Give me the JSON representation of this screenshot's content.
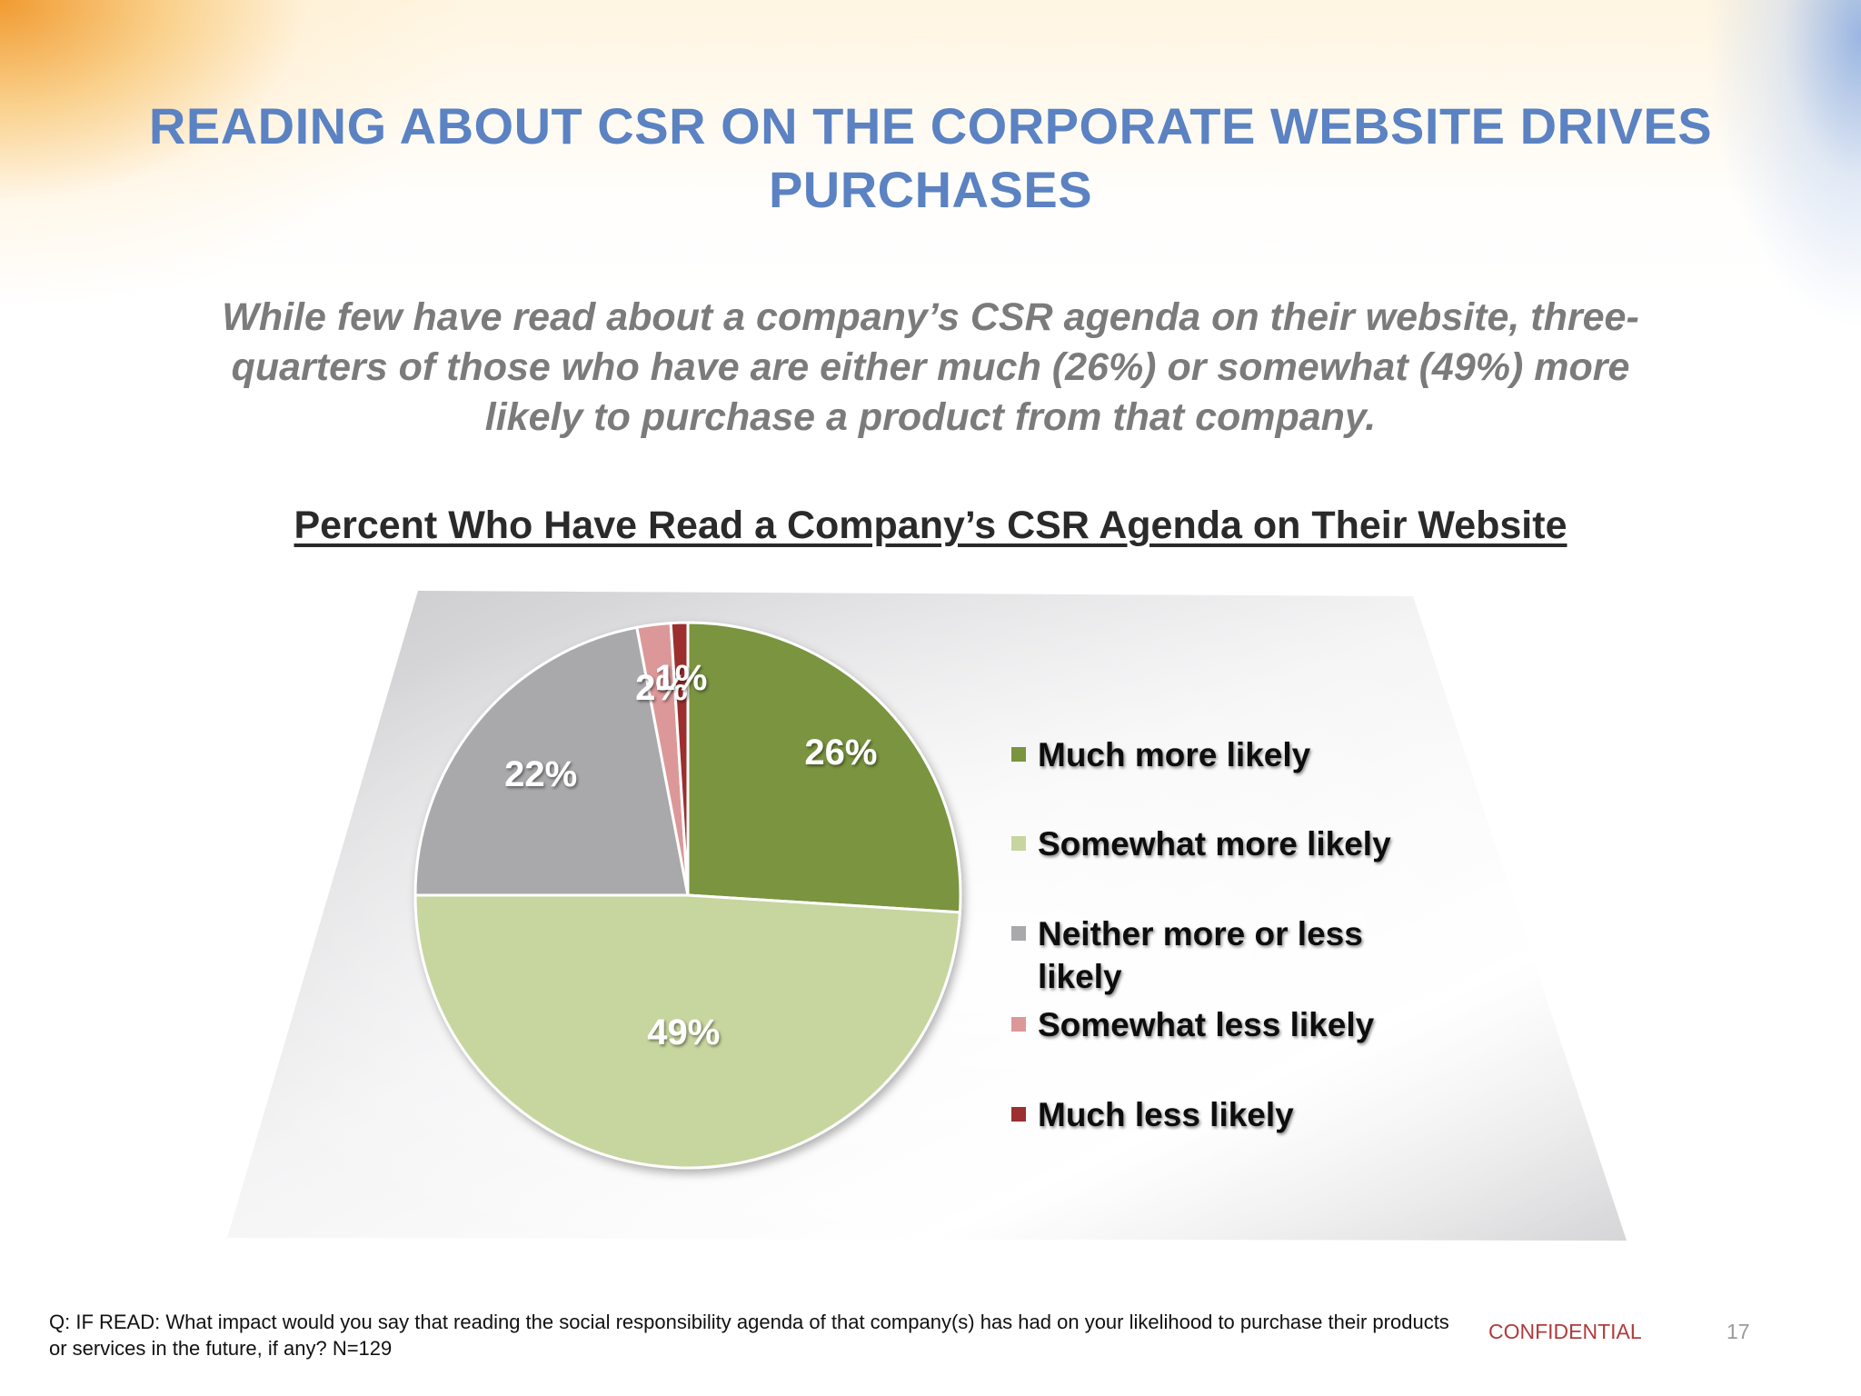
{
  "slide": {
    "title_line1": "READING ABOUT CSR ON THE CORPORATE WEBSITE DRIVES",
    "title_line2": "PURCHASES",
    "subtitle_line1": "While few have read about a company’s CSR agenda on their website, three-",
    "subtitle_line2": "quarters of those who have are either much (26%) or somewhat (49%) more",
    "subtitle_line3": "likely to purchase a product from that company.",
    "footnote_line1": "Q: IF READ: What impact would you say that reading the social responsibility agenda of that company(s) has had on your likelihood to purchase their products",
    "footnote_line2": "or services in the future, if any?  N=129",
    "confidential": "CONFIDENTIAL",
    "page_number": "17"
  },
  "chart_data": {
    "type": "pie",
    "title": "Percent Who Have Read a Company’s CSR Agenda on Their Website",
    "legend_position": "right",
    "slices": [
      {
        "name": "Much more likely",
        "value": 26,
        "label": "26%",
        "color": "#7a9440"
      },
      {
        "name": "Somewhat more likely",
        "value": 49,
        "label": "49%",
        "color": "#c6d69e"
      },
      {
        "name": "Neither more or less likely",
        "value": 22,
        "label": "22%",
        "color": "#a9a9ab"
      },
      {
        "name": "Somewhat less likely",
        "value": 2,
        "label": "2%",
        "color": "#dc9898"
      },
      {
        "name": "Much less likely",
        "value": 1,
        "label": "1%",
        "color": "#9c2f2f"
      }
    ]
  }
}
